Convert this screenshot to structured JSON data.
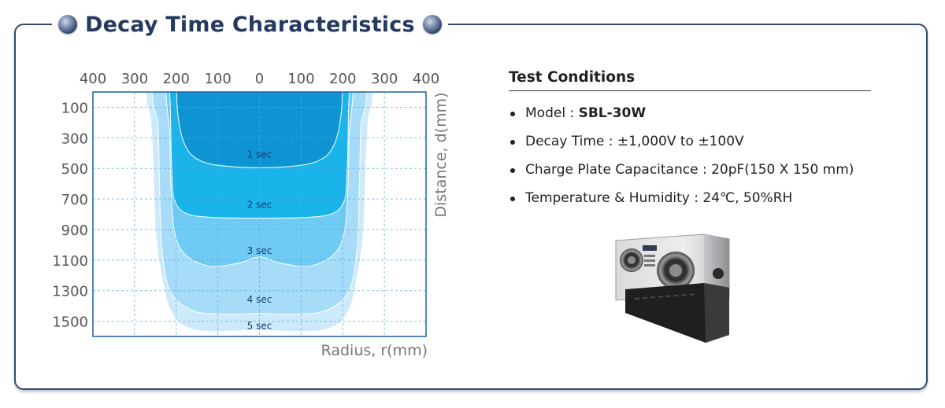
{
  "title": "Decay Time Characteristics",
  "chart_data": {
    "type": "area",
    "xlabel": "Radius, r(mm)",
    "ylabel": "Distance, d(mm)",
    "x_tick_labels": [
      "400",
      "300",
      "200",
      "100",
      "0",
      "100",
      "200",
      "300",
      "400"
    ],
    "y_tick_labels": [
      "100",
      "300",
      "500",
      "700",
      "900",
      "1100",
      "1300",
      "1500"
    ],
    "xlim": [
      -400,
      400
    ],
    "ylim": [
      0,
      1600
    ],
    "y_inverted": true,
    "grid": true,
    "series": [
      {
        "name": "5 sec",
        "color": "#cdeafb",
        "x": [
          -273,
          -270,
          -262,
          -260,
          -255,
          -250,
          -235,
          -210,
          -150,
          0,
          150,
          210,
          235,
          250,
          255,
          260,
          262,
          270,
          273
        ],
        "y": [
          0,
          80,
          160,
          230,
          500,
          900,
          1200,
          1450,
          1560,
          1560,
          1560,
          1450,
          1200,
          900,
          500,
          230,
          160,
          80,
          0
        ]
      },
      {
        "name": "4 sec",
        "color": "#a6dcf8",
        "x": [
          -258,
          -255,
          -247,
          -243,
          -240,
          -235,
          -215,
          -160,
          -80,
          0,
          80,
          160,
          215,
          235,
          240,
          243,
          247,
          255,
          258
        ],
        "y": [
          0,
          80,
          170,
          240,
          600,
          1000,
          1300,
          1430,
          1455,
          1450,
          1455,
          1430,
          1300,
          1000,
          600,
          240,
          170,
          80,
          0
        ]
      },
      {
        "name": "3 sec",
        "color": "#6fcbf3",
        "x": [
          -225,
          -222,
          -218,
          -215,
          -213,
          -205,
          -180,
          -120,
          -50,
          0,
          50,
          120,
          180,
          205,
          213,
          215,
          218,
          222,
          225
        ],
        "y": [
          0,
          100,
          200,
          300,
          600,
          900,
          1060,
          1140,
          1120,
          1080,
          1120,
          1140,
          1060,
          900,
          600,
          300,
          200,
          100,
          0
        ]
      },
      {
        "name": "2 sec",
        "color": "#19b4ea",
        "x": [
          -216,
          -214,
          -213,
          -212,
          -210,
          -205,
          -180,
          -120,
          0,
          120,
          180,
          205,
          210,
          212,
          213,
          214,
          216
        ],
        "y": [
          0,
          100,
          250,
          400,
          550,
          700,
          790,
          820,
          825,
          820,
          790,
          700,
          550,
          400,
          250,
          100,
          0
        ]
      },
      {
        "name": "1 sec",
        "color": "#0e94d2",
        "x": [
          -199,
          -197,
          -190,
          -180,
          -160,
          -120,
          -60,
          0,
          60,
          120,
          160,
          180,
          190,
          197,
          199
        ],
        "y": [
          0,
          120,
          250,
          340,
          420,
          470,
          490,
          495,
          490,
          470,
          420,
          340,
          250,
          120,
          0
        ]
      }
    ],
    "annotations": [
      {
        "text": "1 sec",
        "x": 0,
        "y": 430
      },
      {
        "text": "2 sec",
        "x": 0,
        "y": 760
      },
      {
        "text": "3 sec",
        "x": 0,
        "y": 1060
      },
      {
        "text": "4 sec",
        "x": 0,
        "y": 1380
      },
      {
        "text": "5 sec",
        "x": 0,
        "y": 1550
      }
    ]
  },
  "test_conditions": {
    "heading": "Test Conditions",
    "items": [
      {
        "label": "Model : ",
        "value": "SBL-30W",
        "bold": true
      },
      {
        "label": "Decay Time : ",
        "value": "±1,000V to ±100V",
        "bold": false
      },
      {
        "label": "Charge Plate Capacitance : ",
        "value": "20pF(150 X 150 mm)",
        "bold": false
      },
      {
        "label": "Temperature & Humidity : ",
        "value": "24℃, 50%RH",
        "bold": false
      }
    ]
  },
  "colors": {
    "frame": "#324a6e",
    "title": "#243a60",
    "plot_border": "#1f5fa6",
    "grid": "#5aaae0"
  },
  "device_image": "ionizer-device-icon"
}
